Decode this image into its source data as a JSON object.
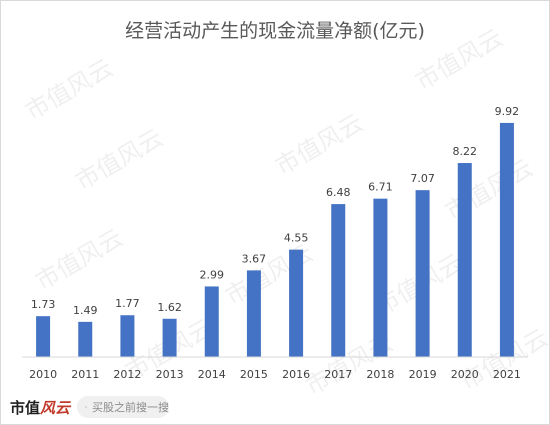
{
  "chart_data": {
    "type": "bar",
    "title": "经营活动产生的现金流量净额(亿元)",
    "categories": [
      "2010",
      "2011",
      "2012",
      "2013",
      "2014",
      "2015",
      "2016",
      "2017",
      "2018",
      "2019",
      "2020",
      "2021"
    ],
    "values": [
      1.73,
      1.49,
      1.77,
      1.62,
      2.99,
      3.67,
      4.55,
      6.48,
      6.71,
      7.07,
      8.22,
      9.92
    ],
    "value_labels": [
      "1.73",
      "1.49",
      "1.77",
      "1.62",
      "2.99",
      "3.67",
      "4.55",
      "6.48",
      "6.71",
      "7.07",
      "8.22",
      "9.92"
    ],
    "ylim": [
      0,
      11.4
    ],
    "grid": false,
    "bar_color": "#4472c4",
    "axis_color": "#d9d9d9",
    "label_color": "#404040"
  },
  "watermark": {
    "text": "市值风云"
  },
  "footer": {
    "logo_main": "市值",
    "logo_accent": "风云",
    "search_icon": "search-icon",
    "search_text": "买股之前搜一搜"
  }
}
